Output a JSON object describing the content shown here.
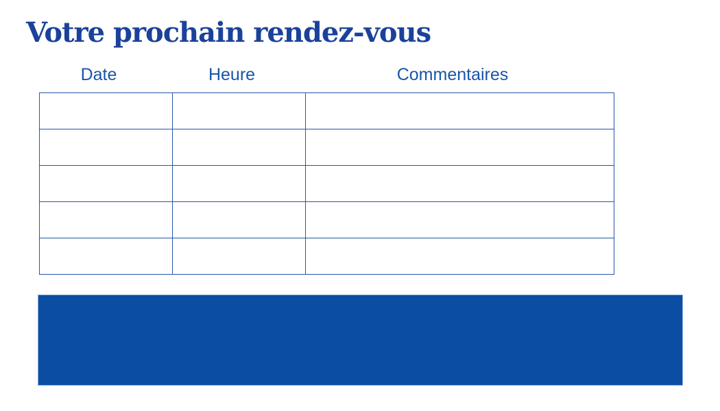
{
  "document": {
    "title": "Votre prochain rendez-vous"
  },
  "appointments_table": {
    "column_headers": [
      "Date",
      "Heure",
      "Commentaires"
    ],
    "row_count": 5,
    "rows": [
      [
        "",
        "",
        ""
      ],
      [
        "",
        "",
        ""
      ],
      [
        "",
        "",
        ""
      ],
      [
        "",
        "",
        ""
      ],
      [
        "",
        "",
        ""
      ]
    ]
  },
  "footer_band": {
    "text": ""
  },
  "colors": {
    "title_text": "#1b429a",
    "column_header_text": "#1a55a8",
    "table_border": "#2256a8",
    "footer_band_fill": "#0b4da2"
  }
}
